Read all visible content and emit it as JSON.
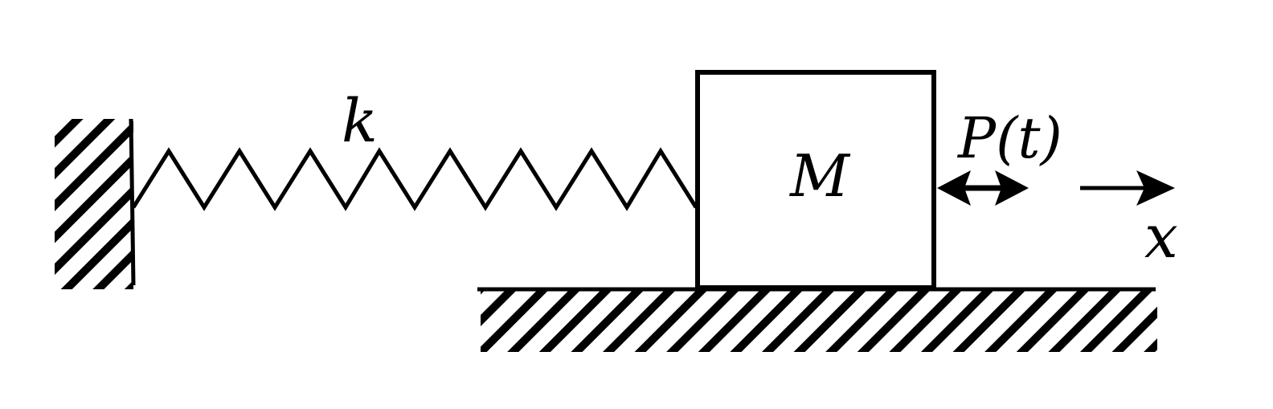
{
  "labels": {
    "spring_constant": "k",
    "mass": "M",
    "force": "P(t)",
    "displacement_axis": "x"
  },
  "colors": {
    "stroke": "#000000",
    "background": "#ffffff"
  },
  "components": {
    "left_support": "fixed-wall",
    "ground": "fixed-floor",
    "spring": "linear-spring",
    "mass": "block",
    "force": "double-headed-arrow",
    "axis": "arrow"
  }
}
